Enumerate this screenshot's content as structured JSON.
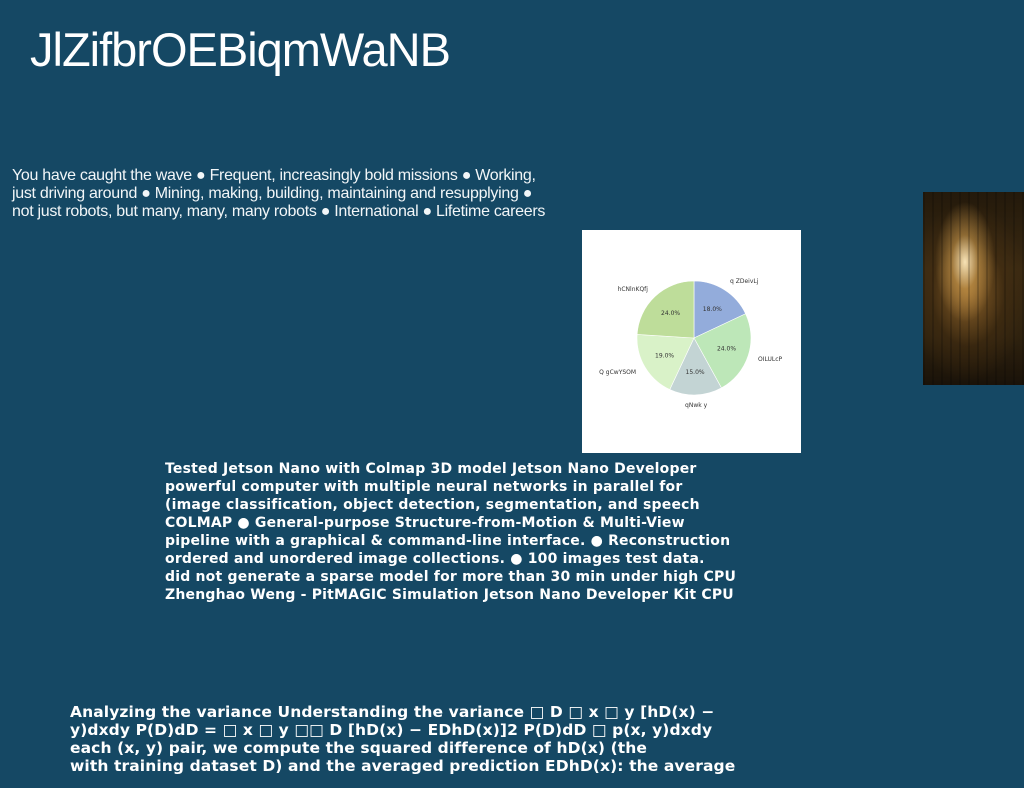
{
  "page": {
    "title": "JlZifbrOEBiqmWaNB",
    "intro_lines": [
      "You have caught the wave ● Frequent, increasingly bold missions ● Working,",
      "just driving around ● Mining, making, building, maintaining and resupplying ●",
      "not just robots, but many, many, many robots ● International ● Lifetime careers"
    ],
    "body_lines": [
      "Tested Jetson Nano with Colmap 3D model Jetson Nano Developer",
      "powerful computer with multiple neural networks in parallel for",
      "(image classification, object detection, segmentation, and speech",
      "COLMAP ● General-purpose Structure-from-Motion & Multi-View",
      "pipeline with a graphical & command-line interface. ● Reconstruction",
      "ordered and unordered image collections. ● 100 images test data.",
      "did not generate a sparse model for more than 30 min under high CPU",
      "Zhenghao Weng - PitMAGIC Simulation Jetson Nano Developer Kit CPU"
    ],
    "footer_lines": [
      "Analyzing the variance Understanding the variance □ D □ x □ y [hD(x) −",
      "y)dxdy P(D)dD = □ x □ y □□ D [hD(x) − EDhD(x)]2 P(D)dD □ p(x, y)dxdy",
      "each (x, y) pair, we compute the squared difference of hD(x) (the",
      "with training dataset D) and the averaged prediction EDhD(x): the average"
    ],
    "colors": {
      "background": "#154864",
      "text": "#ffffff",
      "chart_background": "#ffffff"
    }
  },
  "chart_data": {
    "type": "pie",
    "title": "",
    "start_angle_deg": 90,
    "direction": "clockwise",
    "slices": [
      {
        "label": "q ZDeivLj",
        "value": 18.0,
        "value_label": "18.0%",
        "color": "#93acdb"
      },
      {
        "label": "OILULcP",
        "value": 24.0,
        "value_label": "24.0%",
        "color": "#bde7b8"
      },
      {
        "label": "qNwk y",
        "value": 15.0,
        "value_label": "15.0%",
        "color": "#c3d4d4"
      },
      {
        "label": "Q gCwYSOM",
        "value": 19.0,
        "value_label": "19.0%",
        "color": "#d9f2c8"
      },
      {
        "label": "hCNlnKQfj",
        "value": 24.0,
        "value_label": "24.0%",
        "color": "#bedd9a"
      }
    ]
  }
}
